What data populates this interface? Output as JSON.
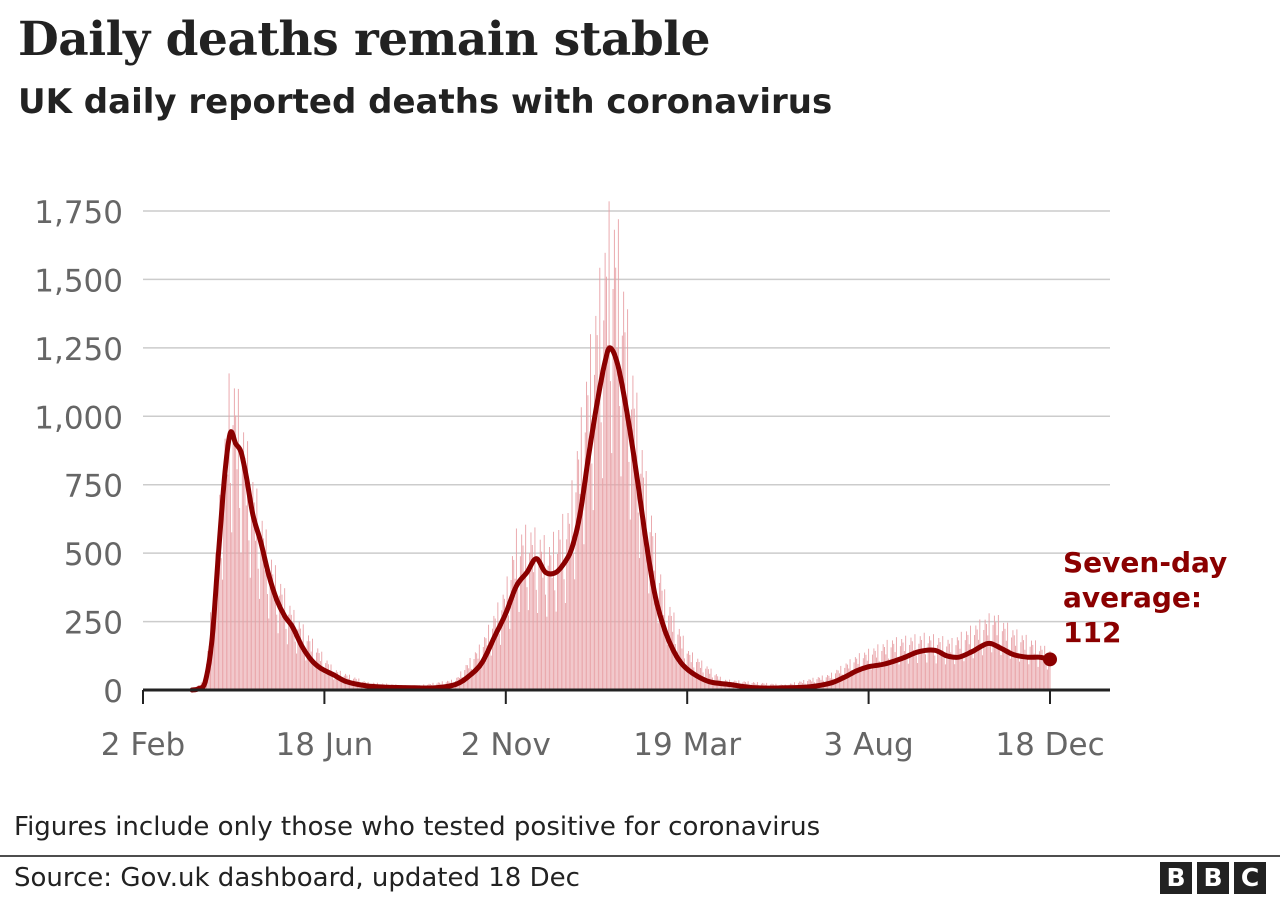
{
  "header": {
    "title": "Daily deaths remain stable",
    "subtitle": "UK daily reported deaths with coronavirus"
  },
  "footer": {
    "note": "Figures include only those who tested positive for coronavirus",
    "source": "Source: Gov.uk dashboard, updated 18 Dec",
    "logo_text": "BBC"
  },
  "colors": {
    "average_line": "#8b0000",
    "daily_bars": "#e8a1a6",
    "gridline": "#cccccc",
    "axis": "#222222",
    "tick_text": "#666666"
  },
  "chart_data": {
    "type": "line",
    "title": "Daily deaths remain stable",
    "subtitle": "UK daily reported deaths with coronavirus",
    "xlabel": "",
    "ylabel": "",
    "ylim": [
      0,
      1750
    ],
    "xlim": [
      "2020-02-02",
      "2021-12-18"
    ],
    "grid": true,
    "y_ticks": [
      0,
      250,
      500,
      750,
      1000,
      1250,
      1500,
      1750
    ],
    "y_tick_labels": [
      "0",
      "250",
      "500",
      "750",
      "1,000",
      "1,250",
      "1,500",
      "1,750"
    ],
    "x_ticks": [
      "2020-02-02",
      "2020-06-18",
      "2020-11-02",
      "2021-03-19",
      "2021-08-03",
      "2021-12-18"
    ],
    "x_tick_labels": [
      "2 Feb",
      "18 Jun",
      "2 Nov",
      "19 Mar",
      "3 Aug",
      "18 Dec"
    ],
    "annotation": {
      "lines": [
        "Seven-day",
        "average:",
        "112"
      ],
      "date": "2021-12-18",
      "value": 112
    },
    "series": [
      {
        "name": "Seven-day average",
        "kind": "line",
        "points": [
          [
            "2020-03-10",
            0
          ],
          [
            "2020-03-15",
            5
          ],
          [
            "2020-03-20",
            30
          ],
          [
            "2020-03-25",
            180
          ],
          [
            "2020-03-30",
            500
          ],
          [
            "2020-04-04",
            800
          ],
          [
            "2020-04-08",
            940
          ],
          [
            "2020-04-12",
            900
          ],
          [
            "2020-04-16",
            870
          ],
          [
            "2020-04-20",
            780
          ],
          [
            "2020-04-25",
            640
          ],
          [
            "2020-05-01",
            540
          ],
          [
            "2020-05-07",
            420
          ],
          [
            "2020-05-13",
            330
          ],
          [
            "2020-05-19",
            270
          ],
          [
            "2020-05-25",
            230
          ],
          [
            "2020-06-01",
            160
          ],
          [
            "2020-06-08",
            110
          ],
          [
            "2020-06-15",
            80
          ],
          [
            "2020-06-25",
            55
          ],
          [
            "2020-07-05",
            30
          ],
          [
            "2020-07-20",
            15
          ],
          [
            "2020-08-05",
            10
          ],
          [
            "2020-08-25",
            8
          ],
          [
            "2020-09-10",
            8
          ],
          [
            "2020-09-25",
            20
          ],
          [
            "2020-10-05",
            50
          ],
          [
            "2020-10-15",
            100
          ],
          [
            "2020-10-25",
            200
          ],
          [
            "2020-11-02",
            280
          ],
          [
            "2020-11-10",
            380
          ],
          [
            "2020-11-18",
            430
          ],
          [
            "2020-11-25",
            480
          ],
          [
            "2020-12-02",
            430
          ],
          [
            "2020-12-10",
            430
          ],
          [
            "2020-12-17",
            470
          ],
          [
            "2020-12-22",
            520
          ],
          [
            "2020-12-28",
            640
          ],
          [
            "2021-01-04",
            870
          ],
          [
            "2021-01-10",
            1050
          ],
          [
            "2021-01-16",
            1200
          ],
          [
            "2021-01-20",
            1250
          ],
          [
            "2021-01-26",
            1180
          ],
          [
            "2021-02-02",
            1000
          ],
          [
            "2021-02-09",
            780
          ],
          [
            "2021-02-16",
            540
          ],
          [
            "2021-02-23",
            340
          ],
          [
            "2021-03-02",
            220
          ],
          [
            "2021-03-09",
            140
          ],
          [
            "2021-03-16",
            90
          ],
          [
            "2021-03-25",
            55
          ],
          [
            "2021-04-05",
            30
          ],
          [
            "2021-04-20",
            20
          ],
          [
            "2021-05-10",
            8
          ],
          [
            "2021-06-01",
            8
          ],
          [
            "2021-06-20",
            12
          ],
          [
            "2021-07-05",
            25
          ],
          [
            "2021-07-15",
            45
          ],
          [
            "2021-07-25",
            70
          ],
          [
            "2021-08-03",
            85
          ],
          [
            "2021-08-15",
            95
          ],
          [
            "2021-08-28",
            115
          ],
          [
            "2021-09-10",
            140
          ],
          [
            "2021-09-22",
            145
          ],
          [
            "2021-10-01",
            125
          ],
          [
            "2021-10-10",
            120
          ],
          [
            "2021-10-20",
            140
          ],
          [
            "2021-11-01",
            170
          ],
          [
            "2021-11-10",
            155
          ],
          [
            "2021-11-20",
            130
          ],
          [
            "2021-12-01",
            120
          ],
          [
            "2021-12-10",
            120
          ],
          [
            "2021-12-18",
            112
          ]
        ]
      },
      {
        "name": "Daily reported deaths",
        "kind": "bars",
        "note": "daily values (approximate envelope with weekly pattern)",
        "envelope": [
          [
            "2020-03-10",
            0
          ],
          [
            "2020-03-20",
            40
          ],
          [
            "2020-03-30",
            650
          ],
          [
            "2020-04-08",
            1220
          ],
          [
            "2020-04-14",
            1100
          ],
          [
            "2020-04-25",
            800
          ],
          [
            "2020-05-10",
            480
          ],
          [
            "2020-05-25",
            300
          ],
          [
            "2020-06-10",
            180
          ],
          [
            "2020-06-25",
            80
          ],
          [
            "2020-07-20",
            30
          ],
          [
            "2020-08-25",
            15
          ],
          [
            "2020-09-25",
            40
          ],
          [
            "2020-10-15",
            180
          ],
          [
            "2020-11-02",
            390
          ],
          [
            "2020-11-10",
            590
          ],
          [
            "2020-11-20",
            610
          ],
          [
            "2020-12-05",
            550
          ],
          [
            "2020-12-20",
            690
          ],
          [
            "2021-01-05",
            1300
          ],
          [
            "2021-01-20",
            1820
          ],
          [
            "2021-01-26",
            1720
          ],
          [
            "2021-02-05",
            1250
          ],
          [
            "2021-02-16",
            800
          ],
          [
            "2021-03-01",
            380
          ],
          [
            "2021-03-20",
            150
          ],
          [
            "2021-04-15",
            40
          ],
          [
            "2021-06-01",
            20
          ],
          [
            "2021-07-05",
            60
          ],
          [
            "2021-07-25",
            130
          ],
          [
            "2021-08-20",
            190
          ],
          [
            "2021-09-15",
            210
          ],
          [
            "2021-10-05",
            190
          ],
          [
            "2021-11-05",
            290
          ],
          [
            "2021-11-20",
            230
          ],
          [
            "2021-12-18",
            150
          ]
        ]
      }
    ]
  }
}
